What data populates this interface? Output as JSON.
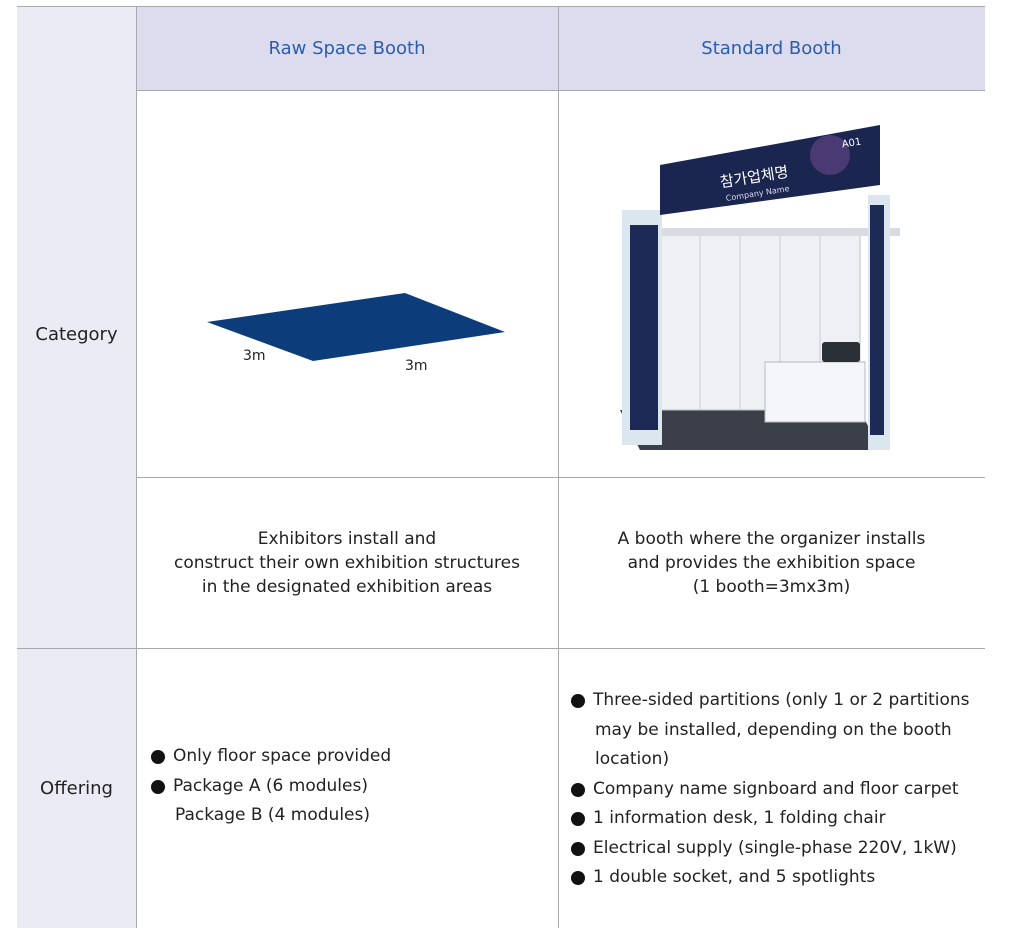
{
  "table": {
    "headers": [
      "Raw Space Booth",
      "Standard Booth"
    ],
    "row_labels": [
      "Category",
      "Offering"
    ],
    "floor_labels": [
      "3m",
      "3m"
    ],
    "booth_image": {
      "name_korean": "참가업체명",
      "name_english": "Company Name",
      "booth_number": "A01"
    },
    "descriptions": [
      [
        "Exhibitors install and",
        "construct their own exhibition structures",
        "in the designated exhibition areas"
      ],
      [
        "A booth where the organizer installs",
        "and provides the exhibition space",
        "(1 booth=3mx3m)"
      ]
    ],
    "offerings": [
      [
        [
          "Only floor space provided"
        ],
        [
          "Package A (6 modules)",
          "Package B (4 modules)"
        ]
      ],
      [
        [
          "Three-sided partitions (only 1 or 2 partitions",
          "may be installed, depending on the booth",
          "location)"
        ],
        [
          "Company name signboard and floor carpet"
        ],
        [
          "1 information desk, 1 folding chair"
        ],
        [
          "Electrical supply (single-phase 220V, 1kW)"
        ],
        [
          "1 double socket, and 5 spotlights"
        ]
      ]
    ]
  }
}
